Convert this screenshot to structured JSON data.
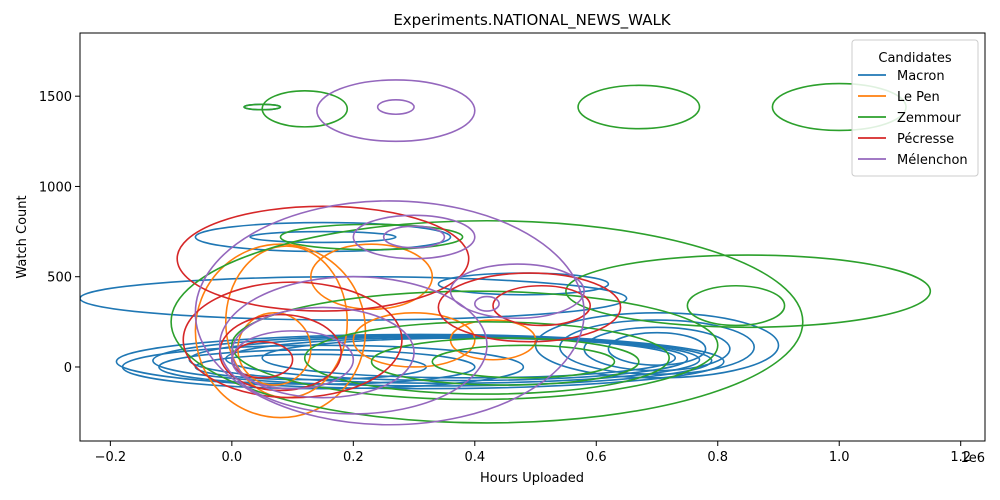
{
  "chart_data": {
    "type": "kde-contour",
    "title": "Experiments.NATIONAL_NEWS_WALK",
    "xlabel": "Hours Uploaded",
    "ylabel": "Watch Count",
    "x_multiplier": "1e6",
    "xlim": [
      -0.25,
      1.24
    ],
    "ylim": [
      -410,
      1850
    ],
    "x_ticks": [
      -0.2,
      0.0,
      0.2,
      0.4,
      0.6,
      0.8,
      1.0,
      1.2
    ],
    "x_tick_labels": [
      "−0.2",
      "0.0",
      "0.2",
      "0.4",
      "0.6",
      "0.8",
      "1.0",
      "1.2"
    ],
    "y_ticks": [
      0,
      500,
      1000,
      1500
    ],
    "y_tick_labels": [
      "0",
      "500",
      "1000",
      "1500"
    ],
    "grid": false,
    "legend": {
      "title": "Candidates",
      "placement": "upper-right"
    },
    "series": [
      {
        "name": "Macron",
        "color": "#1f77b4",
        "contours": [
          {
            "cx": 0.31,
            "cy": 30,
            "rx": 0.5,
            "ry": 150
          },
          {
            "cx": 0.33,
            "cy": 35,
            "rx": 0.46,
            "ry": 140
          },
          {
            "cx": 0.35,
            "cy": 40,
            "rx": 0.42,
            "ry": 130
          },
          {
            "cx": 0.37,
            "cy": 45,
            "rx": 0.38,
            "ry": 120
          },
          {
            "cx": 0.39,
            "cy": 50,
            "rx": 0.34,
            "ry": 110
          },
          {
            "cx": 0.15,
            "cy": 0,
            "rx": 0.33,
            "ry": 120
          },
          {
            "cx": 0.14,
            "cy": 0,
            "rx": 0.26,
            "ry": 95
          },
          {
            "cx": 0.13,
            "cy": 0,
            "rx": 0.19,
            "ry": 70
          },
          {
            "cx": 0.7,
            "cy": 120,
            "rx": 0.2,
            "ry": 180
          },
          {
            "cx": 0.7,
            "cy": 110,
            "rx": 0.16,
            "ry": 150
          },
          {
            "cx": 0.7,
            "cy": 100,
            "rx": 0.12,
            "ry": 120
          },
          {
            "cx": 0.7,
            "cy": 100,
            "rx": 0.08,
            "ry": 90
          },
          {
            "cx": 0.2,
            "cy": 380,
            "rx": 0.45,
            "ry": 120
          },
          {
            "cx": 0.48,
            "cy": 460,
            "rx": 0.14,
            "ry": 60
          },
          {
            "cx": 0.15,
            "cy": 720,
            "rx": 0.21,
            "ry": 80
          },
          {
            "cx": 0.15,
            "cy": 720,
            "rx": 0.12,
            "ry": 30
          },
          {
            "cx": 0.05,
            "cy": 1440,
            "rx": 0.03,
            "ry": 15
          }
        ]
      },
      {
        "name": "Le Pen",
        "color": "#ff7f0e",
        "contours": [
          {
            "cx": 0.08,
            "cy": 200,
            "rx": 0.14,
            "ry": 480
          },
          {
            "cx": 0.09,
            "cy": 250,
            "rx": 0.1,
            "ry": 420
          },
          {
            "cx": 0.07,
            "cy": 100,
            "rx": 0.06,
            "ry": 200
          },
          {
            "cx": 0.23,
            "cy": 500,
            "rx": 0.1,
            "ry": 180
          },
          {
            "cx": 0.3,
            "cy": 150,
            "rx": 0.1,
            "ry": 150
          },
          {
            "cx": 0.43,
            "cy": 150,
            "rx": 0.07,
            "ry": 110
          }
        ]
      },
      {
        "name": "Zemmour",
        "color": "#2ca02c",
        "contours": [
          {
            "cx": 0.42,
            "cy": 250,
            "rx": 0.52,
            "ry": 560
          },
          {
            "cx": 0.85,
            "cy": 420,
            "rx": 0.3,
            "ry": 200
          },
          {
            "cx": 0.4,
            "cy": 120,
            "rx": 0.4,
            "ry": 300
          },
          {
            "cx": 0.42,
            "cy": 50,
            "rx": 0.3,
            "ry": 200
          },
          {
            "cx": 0.45,
            "cy": 30,
            "rx": 0.22,
            "ry": 130
          },
          {
            "cx": 0.48,
            "cy": 30,
            "rx": 0.15,
            "ry": 90
          },
          {
            "cx": 0.23,
            "cy": 720,
            "rx": 0.15,
            "ry": 70
          },
          {
            "cx": 0.12,
            "cy": 1430,
            "rx": 0.07,
            "ry": 100
          },
          {
            "cx": 0.05,
            "cy": 1440,
            "rx": 0.03,
            "ry": 15
          },
          {
            "cx": 0.67,
            "cy": 1440,
            "rx": 0.1,
            "ry": 120
          },
          {
            "cx": 1.0,
            "cy": 1440,
            "rx": 0.11,
            "ry": 130
          },
          {
            "cx": 0.83,
            "cy": 340,
            "rx": 0.08,
            "ry": 110
          }
        ]
      },
      {
        "name": "Pécresse",
        "color": "#d62728",
        "contours": [
          {
            "cx": 0.15,
            "cy": 600,
            "rx": 0.24,
            "ry": 290
          },
          {
            "cx": 0.1,
            "cy": 150,
            "rx": 0.18,
            "ry": 320
          },
          {
            "cx": 0.08,
            "cy": 80,
            "rx": 0.1,
            "ry": 210
          },
          {
            "cx": 0.05,
            "cy": 40,
            "rx": 0.05,
            "ry": 100
          },
          {
            "cx": 0.49,
            "cy": 330,
            "rx": 0.15,
            "ry": 190
          },
          {
            "cx": 0.51,
            "cy": 340,
            "rx": 0.08,
            "ry": 110
          }
        ]
      },
      {
        "name": "Mélenchon",
        "color": "#9467bd",
        "contours": [
          {
            "cx": 0.26,
            "cy": 300,
            "rx": 0.32,
            "ry": 620
          },
          {
            "cx": 0.2,
            "cy": 120,
            "rx": 0.22,
            "ry": 380
          },
          {
            "cx": 0.15,
            "cy": 80,
            "rx": 0.15,
            "ry": 250
          },
          {
            "cx": 0.1,
            "cy": 40,
            "rx": 0.1,
            "ry": 160
          },
          {
            "cx": 0.3,
            "cy": 720,
            "rx": 0.1,
            "ry": 120
          },
          {
            "cx": 0.3,
            "cy": 720,
            "rx": 0.05,
            "ry": 60
          },
          {
            "cx": 0.27,
            "cy": 1420,
            "rx": 0.13,
            "ry": 170
          },
          {
            "cx": 0.27,
            "cy": 1440,
            "rx": 0.03,
            "ry": 40
          },
          {
            "cx": 0.47,
            "cy": 420,
            "rx": 0.11,
            "ry": 150
          },
          {
            "cx": 0.42,
            "cy": 350,
            "rx": 0.02,
            "ry": 40
          }
        ]
      }
    ]
  }
}
